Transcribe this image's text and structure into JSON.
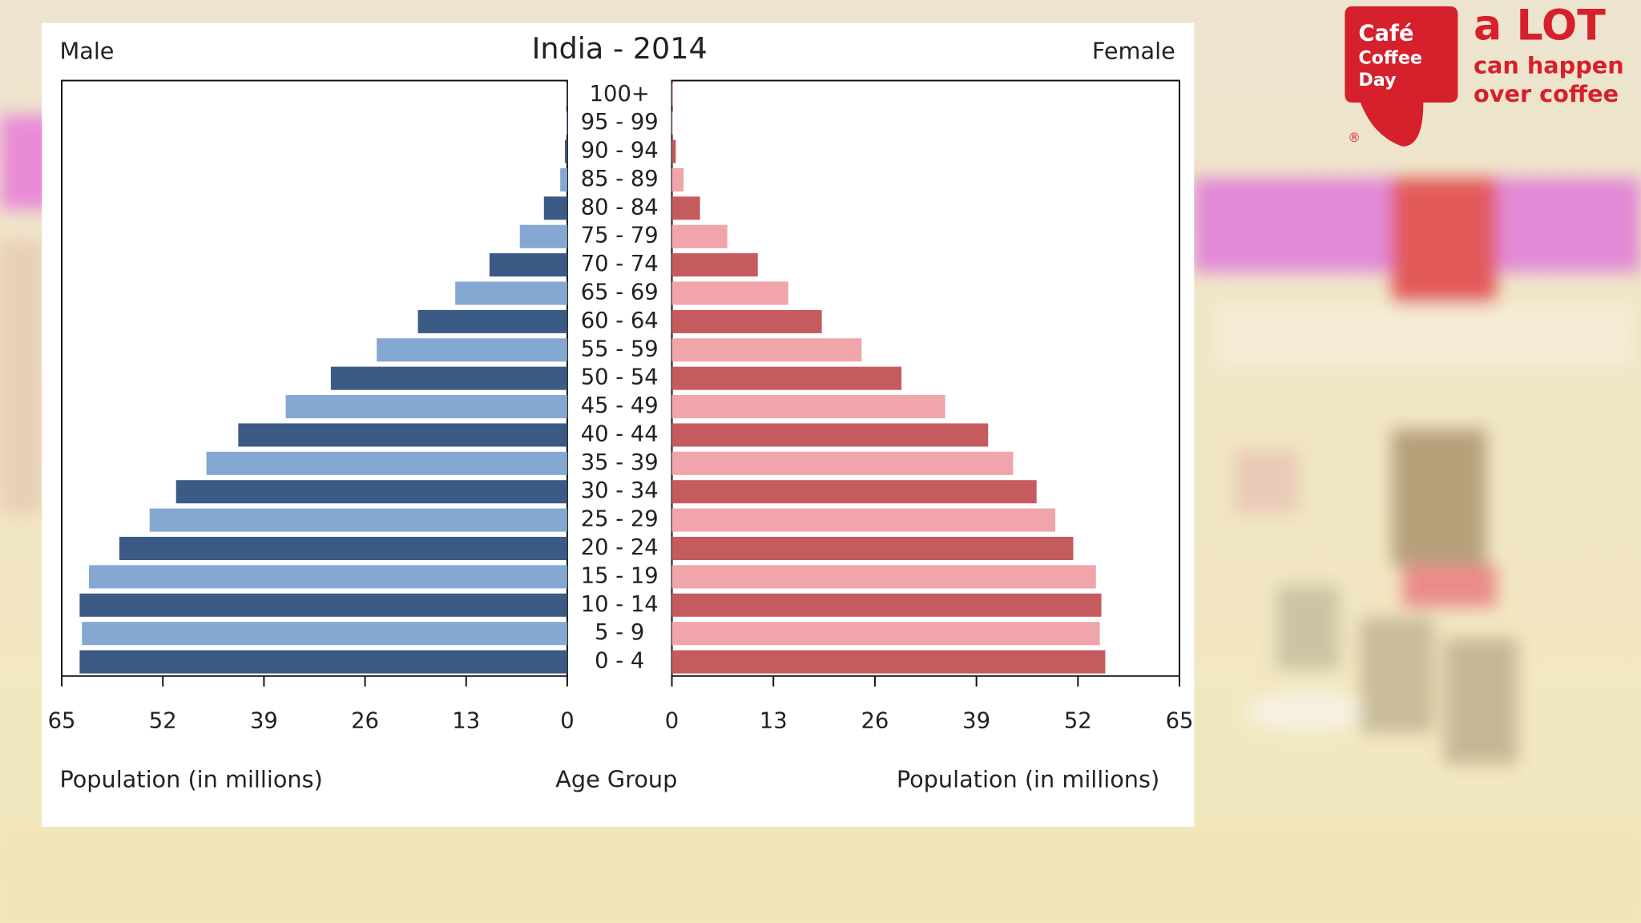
{
  "chart_data": {
    "type": "pyramid",
    "title": "India - 2014",
    "x_label": "Population (in millions)",
    "y_label": "Age Group",
    "categories": [
      "0 - 4",
      "5 - 9",
      "10 - 14",
      "15 - 19",
      "20 - 24",
      "25 - 29",
      "30 - 34",
      "35 - 39",
      "40 - 44",
      "45 - 49",
      "50 - 54",
      "55 - 59",
      "60 - 64",
      "65 - 69",
      "70 - 74",
      "75 - 79",
      "80 - 84",
      "85 - 89",
      "90 - 94",
      "95 - 99",
      "100+"
    ],
    "series": [
      {
        "name": "Male",
        "side": "left",
        "colors": [
          "#3b5b86",
          "#84a8d1"
        ],
        "values": [
          62.7,
          62.4,
          62.7,
          61.5,
          57.6,
          53.7,
          50.3,
          46.4,
          42.3,
          36.2,
          30.4,
          24.5,
          19.2,
          14.4,
          10.0,
          6.1,
          3.0,
          0.9,
          0.3,
          0.1,
          0.1
        ]
      },
      {
        "name": "Female",
        "side": "right",
        "colors": [
          "#c65b5f",
          "#efa5a9"
        ],
        "values": [
          55.5,
          54.8,
          55.0,
          54.3,
          51.4,
          49.1,
          46.7,
          43.7,
          40.5,
          35.0,
          29.4,
          24.3,
          19.2,
          14.9,
          11.0,
          7.1,
          3.6,
          1.5,
          0.5,
          0.1,
          0.1
        ]
      }
    ],
    "xlim": [
      0,
      65
    ],
    "xticks": [
      0,
      13,
      26,
      39,
      52,
      65
    ]
  },
  "logo": {
    "brand": [
      "Café",
      "Coffee",
      "Day"
    ],
    "tagline": [
      "a LOT",
      "can happen",
      "over coffee"
    ],
    "mark": "®"
  }
}
